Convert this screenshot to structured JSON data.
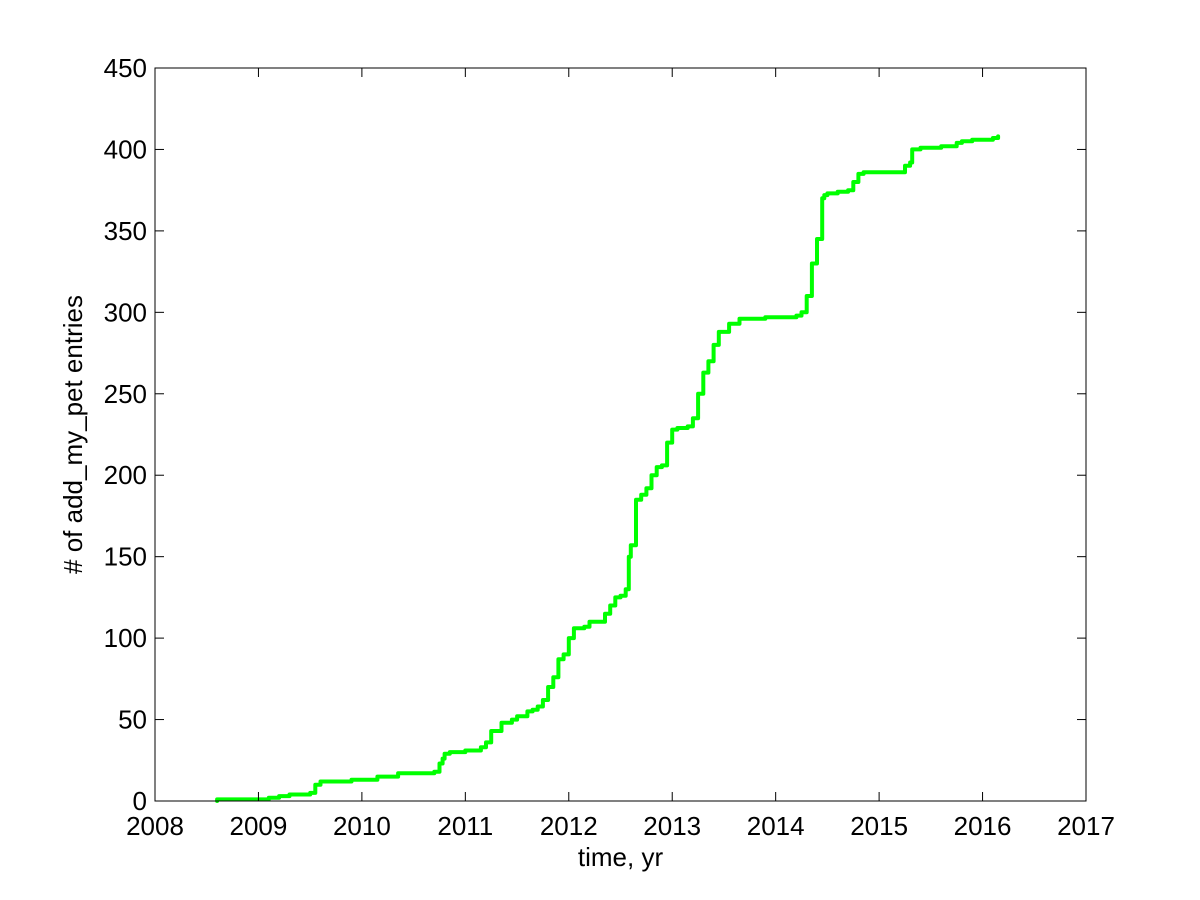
{
  "chart_data": {
    "type": "line",
    "title": "",
    "xlabel": "time, yr",
    "ylabel": "# of add_my_pet entries",
    "xlim": [
      2008,
      2017
    ],
    "ylim": [
      0,
      450
    ],
    "xticks": [
      2008,
      2009,
      2010,
      2011,
      2012,
      2013,
      2014,
      2015,
      2016,
      2017
    ],
    "yticks": [
      0,
      50,
      100,
      150,
      200,
      250,
      300,
      350,
      400,
      450
    ],
    "grid": false,
    "legend": "none",
    "series": [
      {
        "color": "#00ff00",
        "x": [
          2008.6,
          2008.6,
          2009.0,
          2009.1,
          2009.1,
          2009.2,
          2009.3,
          2009.5,
          2009.5,
          2009.55,
          2009.6,
          2009.6,
          2009.9,
          2009.9,
          2010.15,
          2010.15,
          2010.35,
          2010.35,
          2010.7,
          2010.75,
          2010.78,
          2010.8,
          2010.85,
          2011.0,
          2011.1,
          2011.15,
          2011.2,
          2011.25,
          2011.35,
          2011.45,
          2011.5,
          2011.6,
          2011.65,
          2011.7,
          2011.75,
          2011.8,
          2011.85,
          2011.9,
          2011.95,
          2012.0,
          2012.05,
          2012.15,
          2012.2,
          2012.35,
          2012.4,
          2012.45,
          2012.5,
          2012.55,
          2012.58,
          2012.6,
          2012.65,
          2012.65,
          2012.7,
          2012.75,
          2012.8,
          2012.85,
          2012.9,
          2012.95,
          2013.0,
          2013.05,
          2013.15,
          2013.2,
          2013.25,
          2013.3,
          2013.35,
          2013.4,
          2013.45,
          2013.45,
          2013.55,
          2013.65,
          2013.75,
          2013.9,
          2014.0,
          2014.2,
          2014.25,
          2014.3,
          2014.35,
          2014.4,
          2014.45,
          2014.47,
          2014.5,
          2014.6,
          2014.7,
          2014.75,
          2014.8,
          2014.85,
          2014.9,
          2015.0,
          2015.2,
          2015.25,
          2015.3,
          2015.32,
          2015.4,
          2015.6,
          2015.75,
          2015.8,
          2015.9,
          2016.1,
          2016.15
        ],
        "y": [
          0,
          1,
          1,
          2,
          2,
          3,
          4,
          4,
          5,
          10,
          12,
          12,
          13,
          13,
          15,
          15,
          17,
          17,
          18,
          23,
          26,
          29,
          30,
          31,
          31,
          33,
          36,
          43,
          48,
          50,
          52,
          55,
          56,
          58,
          62,
          70,
          76,
          87,
          90,
          100,
          106,
          107,
          110,
          115,
          120,
          125,
          126,
          130,
          150,
          157,
          157,
          185,
          188,
          192,
          200,
          205,
          206,
          220,
          228,
          229,
          230,
          235,
          250,
          263,
          270,
          280,
          285,
          288,
          293,
          296,
          296,
          297,
          297,
          298,
          300,
          310,
          330,
          345,
          370,
          372,
          373,
          374,
          375,
          380,
          385,
          386,
          386,
          386,
          386,
          390,
          392,
          400,
          401,
          402,
          404,
          405,
          406,
          407,
          408
        ]
      }
    ]
  }
}
